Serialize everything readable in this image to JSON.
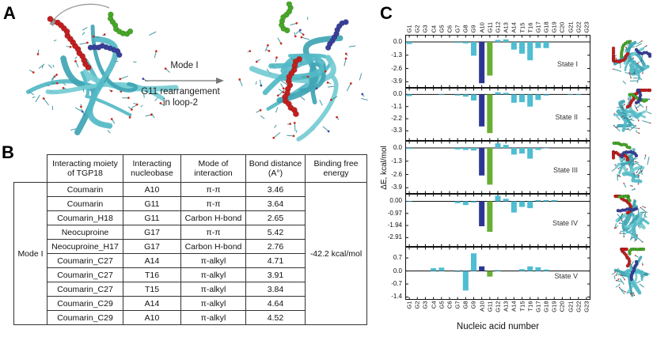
{
  "figure": {
    "panel_a": {
      "label": "A",
      "mode_text": "Mode I",
      "caption_line1": "G11 rearrangement",
      "caption_line2": "in loop-2"
    },
    "panel_b": {
      "label": "B",
      "row_group": "Mode I",
      "headers": [
        "Interacting moiety of TGP18",
        "Interacting nucleobase",
        "Mode of interaction",
        "Bond distance (A°)",
        "Binding free energy"
      ],
      "rows": [
        {
          "moiety": "Coumarin",
          "nucleobase": "A10",
          "mode": "π-π",
          "distance": "3.46"
        },
        {
          "moiety": "Coumarin",
          "nucleobase": "G11",
          "mode": "π-π",
          "distance": "3.64"
        },
        {
          "moiety": "Coumarin_H18",
          "nucleobase": "G11",
          "mode": "Carbon H-bond",
          "distance": "2.65"
        },
        {
          "moiety": "Neocuproine",
          "nucleobase": "G17",
          "mode": "π-π",
          "distance": "5.42"
        },
        {
          "moiety": "Neocuproine_H17",
          "nucleobase": "G17",
          "mode": "Carbon H-bond",
          "distance": "2.76"
        },
        {
          "moiety": "Coumarin_C27",
          "nucleobase": "A14",
          "mode": "π-alkyl",
          "distance": "4.71"
        },
        {
          "moiety": "Coumarin_C27",
          "nucleobase": "T16",
          "mode": "π-alkyl",
          "distance": "3.91"
        },
        {
          "moiety": "Coumarin_C27",
          "nucleobase": "T15",
          "mode": "π-alkyl",
          "distance": "3.84"
        },
        {
          "moiety": "Coumarin_C29",
          "nucleobase": "A14",
          "mode": "π-alkyl",
          "distance": "4.64"
        },
        {
          "moiety": "Coumarin_C29",
          "nucleobase": "A10",
          "mode": "π-alkyl",
          "distance": "4.52"
        }
      ],
      "binding_free_energy": "-42.2 kcal/mol"
    },
    "panel_c": {
      "label": "C",
      "ylabel": "ΔE, kcal/mol",
      "xlabel": "Nucleic acid number"
    }
  },
  "chart_data": {
    "type": "bar",
    "title": "Per-nucleotide interaction energy decomposition",
    "xlabel": "Nucleic acid number",
    "ylabel": "ΔE, kcal/mol",
    "grid": false,
    "legend": "none",
    "categories": [
      "G1",
      "G2",
      "G3",
      "C4",
      "G5",
      "C6",
      "G7",
      "G8",
      "G9",
      "A10",
      "G11",
      "G12",
      "A13",
      "A14",
      "T15",
      "T16",
      "G17",
      "G18",
      "G19",
      "C20",
      "G21",
      "G22",
      "G23"
    ],
    "bar_colors": {
      "default": "#4fbdd2",
      "A10": "#2c3692",
      "G11": "#6aaf35"
    },
    "series": [
      {
        "name": "State I",
        "ylim": [
          0.7,
          -4.5
        ],
        "yticks": [
          "0.0",
          "-1.3",
          "-2.6",
          "-3.9"
        ],
        "values": [
          -0.2,
          0,
          0,
          0,
          0,
          0,
          -0.1,
          -0.15,
          -1.35,
          -4.05,
          -3.3,
          0.2,
          0.25,
          -0.75,
          -1.15,
          -1.8,
          -0.6,
          -0.6,
          0,
          0,
          0,
          0,
          0
        ]
      },
      {
        "name": "State II",
        "ylim": [
          0.6,
          -4.2
        ],
        "yticks": [
          "0.0",
          "-1.1",
          "-2.2",
          "-3.3"
        ],
        "values": [
          -0.15,
          0,
          0,
          0,
          -0.05,
          0,
          -0.1,
          -0.2,
          -0.55,
          -2.9,
          -3.5,
          0.2,
          0.15,
          -0.75,
          -0.7,
          -1.1,
          -0.5,
          -0.1,
          0,
          0,
          -0.05,
          -0.05,
          0
        ]
      },
      {
        "name": "State III",
        "ylim": [
          0.7,
          -4.5
        ],
        "yticks": [
          "0.0",
          "-1.3",
          "-2.6",
          "-3.9"
        ],
        "values": [
          -0.1,
          0,
          0,
          0,
          0,
          0,
          -0.15,
          -0.2,
          -0.25,
          -2.7,
          -3.6,
          0.45,
          0.3,
          -0.65,
          -0.55,
          -1.05,
          -0.2,
          -0.05,
          0,
          0,
          0,
          0,
          0
        ]
      },
      {
        "name": "State IV",
        "ylim": [
          0.6,
          -3.65
        ],
        "yticks": [
          "0.00",
          "-0.97",
          "-1.94",
          "-2.91"
        ],
        "values": [
          -0.05,
          0,
          0,
          0,
          0,
          0,
          -0.15,
          -0.3,
          -0.1,
          -2.0,
          -2.45,
          0.45,
          0.2,
          -0.9,
          -0.45,
          -0.55,
          0.1,
          0.1,
          0.1,
          0,
          0,
          0,
          0
        ]
      },
      {
        "name": "State V",
        "ylim": [
          1.3,
          -1.55
        ],
        "yticks": [
          "0.7",
          "0.0",
          "-0.7",
          "-1.4"
        ],
        "values": [
          0,
          0,
          0,
          0.15,
          0.18,
          0,
          -0.05,
          -1.05,
          0.95,
          0.25,
          -0.3,
          0.05,
          0,
          0,
          0.1,
          0.25,
          0.2,
          0.08,
          0,
          0,
          0,
          0,
          0
        ]
      }
    ]
  }
}
